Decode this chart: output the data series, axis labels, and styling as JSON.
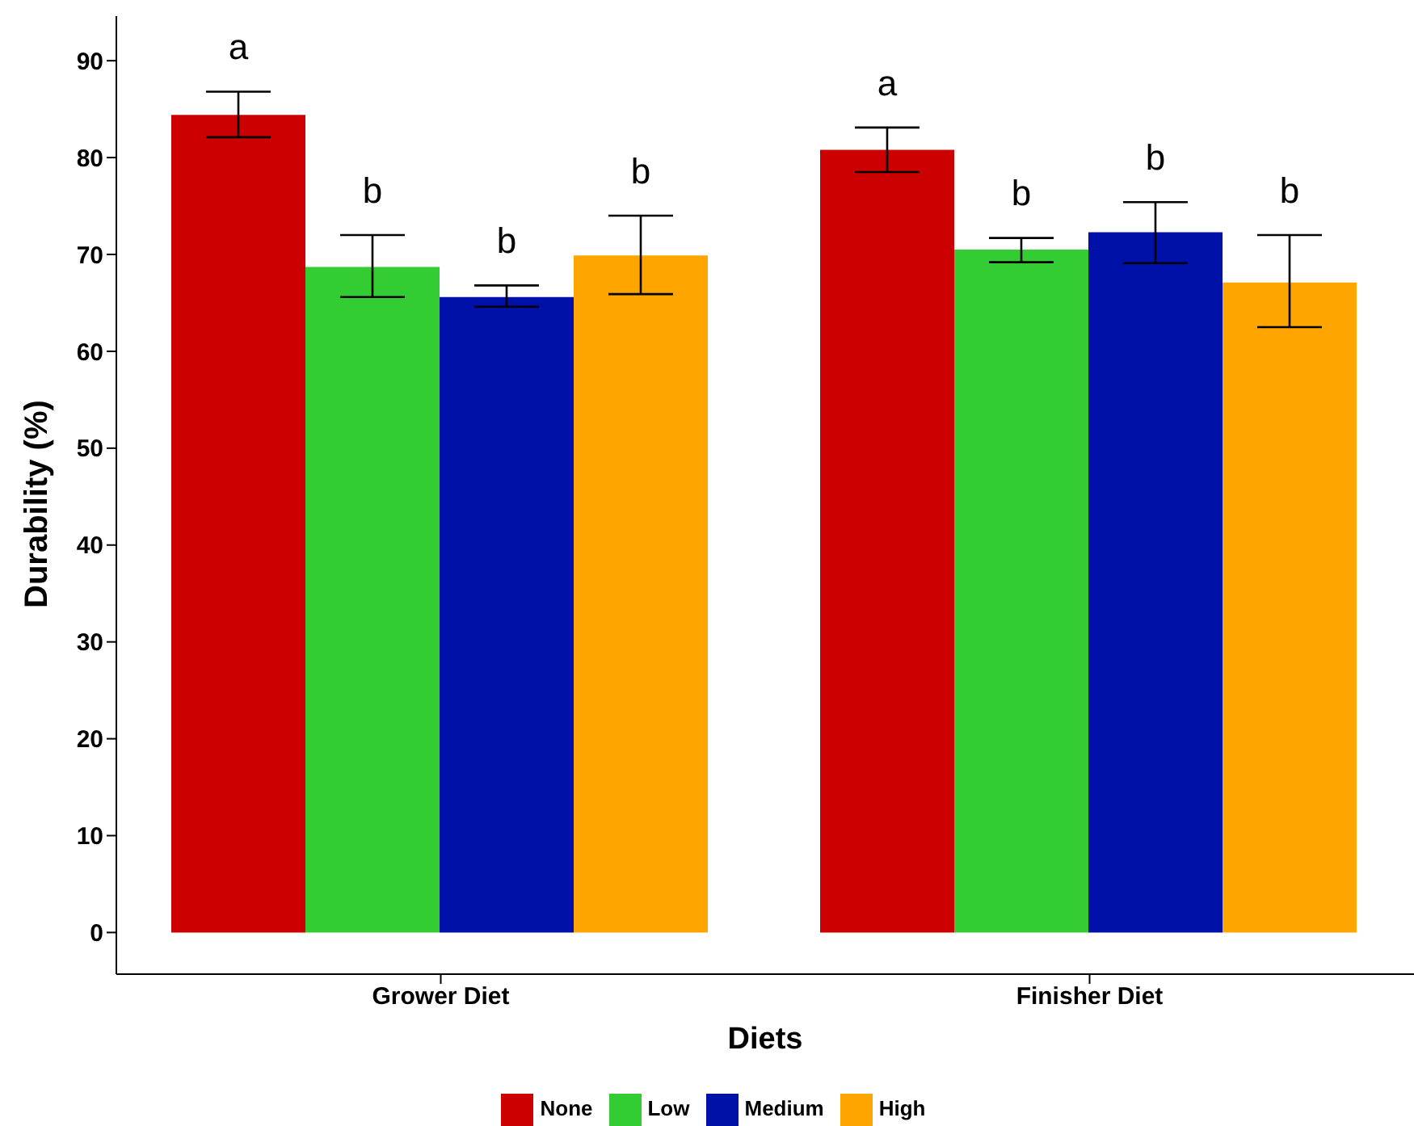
{
  "chart_data": {
    "type": "bar",
    "xlabel": "Diets",
    "ylabel": "Durability (%)",
    "categories": [
      "Grower Diet",
      "Finisher Diet"
    ],
    "series": [
      {
        "name": "None",
        "color": "#cc0000",
        "values": [
          84.4,
          80.8
        ],
        "errors": [
          [
            82.1,
            86.8
          ],
          [
            78.5,
            83.1
          ]
        ]
      },
      {
        "name": "Low",
        "color": "#33cc33",
        "values": [
          68.7,
          70.5
        ],
        "errors": [
          [
            65.6,
            72.0
          ],
          [
            69.2,
            71.7
          ]
        ]
      },
      {
        "name": "Medium",
        "color": "#0011aa",
        "values": [
          65.6,
          72.3
        ],
        "errors": [
          [
            64.6,
            66.8
          ],
          [
            69.1,
            75.4
          ]
        ]
      },
      {
        "name": "High",
        "color": "#ffa500",
        "values": [
          69.9,
          67.1
        ],
        "errors": [
          [
            65.9,
            74.0
          ],
          [
            62.5,
            72.0
          ]
        ]
      }
    ],
    "annotations": [
      "a",
      "b",
      "b",
      "b",
      "a",
      "b",
      "b",
      "b"
    ],
    "ylim": [
      -4.3,
      94.6
    ],
    "yticks": [
      0,
      10,
      20,
      30,
      40,
      50,
      60,
      70,
      80,
      90
    ],
    "grid": false,
    "legend": "bottom"
  }
}
